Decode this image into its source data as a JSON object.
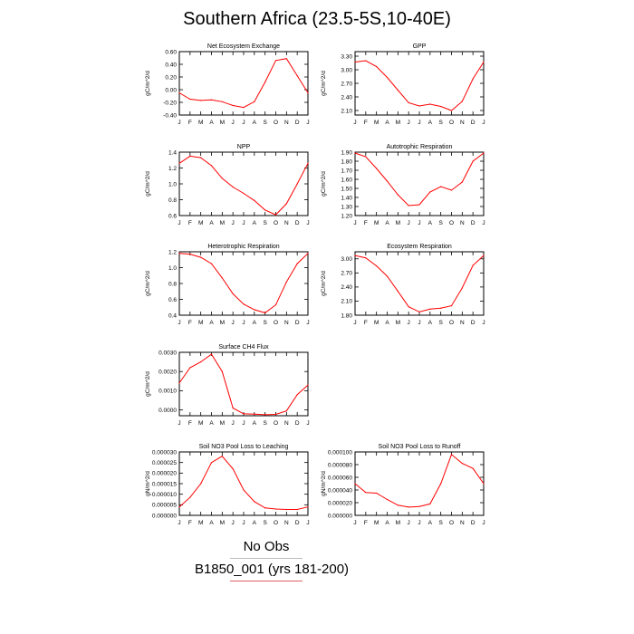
{
  "page_title": "Southern Africa (23.5-5S,10-40E)",
  "legend": {
    "obs_label": "No Obs",
    "case_label": "B1850_001 (yrs 181-200)",
    "case_color": "#ff0000",
    "obs_line_color": "#bbbbbb"
  },
  "chart_data": [
    {
      "type": "line",
      "title": "Net Ecosystem Exchange",
      "ylabel": "gC/m^2/d",
      "x": [
        "J",
        "F",
        "M",
        "A",
        "M",
        "J",
        "J",
        "A",
        "S",
        "O",
        "N",
        "D",
        "J"
      ],
      "ylim": [
        -0.4,
        0.6
      ],
      "yticks": [
        "-0.40",
        "-0.20",
        "0.00",
        "0.20",
        "0.40",
        "0.60"
      ],
      "yticks_values": [
        -0.4,
        -0.2,
        0.0,
        0.2,
        0.4,
        0.6
      ],
      "series": [
        {
          "values": [
            -0.05,
            -0.15,
            -0.17,
            -0.16,
            -0.19,
            -0.25,
            -0.28,
            -0.19,
            0.12,
            0.46,
            0.49,
            0.22,
            -0.05
          ]
        }
      ]
    },
    {
      "type": "line",
      "title": "GPP",
      "ylabel": "gC/m^2/d",
      "x": [
        "J",
        "F",
        "M",
        "A",
        "M",
        "J",
        "J",
        "A",
        "S",
        "O",
        "N",
        "D",
        "J"
      ],
      "ylim": [
        2.0,
        3.4
      ],
      "yticks": [
        "2.10",
        "2.40",
        "2.70",
        "3.00",
        "3.30"
      ],
      "yticks_values": [
        2.1,
        2.4,
        2.7,
        3.0,
        3.3
      ],
      "series": [
        {
          "values": [
            3.17,
            3.2,
            3.07,
            2.83,
            2.55,
            2.27,
            2.2,
            2.24,
            2.19,
            2.1,
            2.3,
            2.8,
            3.17
          ]
        }
      ]
    },
    {
      "type": "line",
      "title": "NPP",
      "ylabel": "gC/m^2/d",
      "x": [
        "J",
        "F",
        "M",
        "A",
        "M",
        "J",
        "J",
        "A",
        "S",
        "O",
        "N",
        "D",
        "J"
      ],
      "ylim": [
        0.6,
        1.4
      ],
      "yticks": [
        "0.6",
        "0.8",
        "1.0",
        "1.2",
        "1.4"
      ],
      "yticks_values": [
        0.6,
        0.8,
        1.0,
        1.2,
        1.4
      ],
      "series": [
        {
          "values": [
            1.26,
            1.35,
            1.33,
            1.23,
            1.07,
            0.96,
            0.88,
            0.79,
            0.67,
            0.61,
            0.75,
            1.0,
            1.26
          ]
        }
      ]
    },
    {
      "type": "line",
      "title": "Autotrophic Respiration",
      "ylabel": "gC/m^2/d",
      "x": [
        "J",
        "F",
        "M",
        "A",
        "M",
        "J",
        "J",
        "A",
        "S",
        "O",
        "N",
        "D",
        "J"
      ],
      "ylim": [
        1.2,
        1.9
      ],
      "yticks": [
        "1.20",
        "1.30",
        "1.40",
        "1.50",
        "1.60",
        "1.70",
        "1.80",
        "1.90"
      ],
      "yticks_values": [
        1.2,
        1.3,
        1.4,
        1.5,
        1.6,
        1.7,
        1.8,
        1.9
      ],
      "series": [
        {
          "values": [
            1.89,
            1.85,
            1.72,
            1.58,
            1.43,
            1.31,
            1.32,
            1.46,
            1.52,
            1.48,
            1.57,
            1.8,
            1.89
          ]
        }
      ]
    },
    {
      "type": "line",
      "title": "Heterotrophic Respiration",
      "ylabel": "gC/m^2/d",
      "x": [
        "J",
        "F",
        "M",
        "A",
        "M",
        "J",
        "J",
        "A",
        "S",
        "O",
        "N",
        "D",
        "J"
      ],
      "ylim": [
        0.4,
        1.2
      ],
      "yticks": [
        "0.4",
        "0.6",
        "0.8",
        "1.0",
        "1.2"
      ],
      "yticks_values": [
        0.4,
        0.6,
        0.8,
        1.0,
        1.2
      ],
      "series": [
        {
          "values": [
            1.18,
            1.17,
            1.13,
            1.05,
            0.87,
            0.67,
            0.54,
            0.47,
            0.43,
            0.53,
            0.82,
            1.05,
            1.18
          ]
        }
      ]
    },
    {
      "type": "line",
      "title": "Ecosystem Respiration",
      "ylabel": "gC/m^2/d",
      "x": [
        "J",
        "F",
        "M",
        "A",
        "M",
        "J",
        "J",
        "A",
        "S",
        "O",
        "N",
        "D",
        "J"
      ],
      "ylim": [
        1.8,
        3.15
      ],
      "yticks": [
        "1.80",
        "2.10",
        "2.40",
        "2.70",
        "3.00"
      ],
      "yticks_values": [
        1.8,
        2.1,
        2.4,
        2.7,
        3.0
      ],
      "series": [
        {
          "values": [
            3.07,
            3.02,
            2.85,
            2.63,
            2.31,
            1.98,
            1.87,
            1.93,
            1.95,
            2.0,
            2.38,
            2.86,
            3.07
          ]
        }
      ]
    },
    {
      "type": "line",
      "title": "Surface CH4 Flux",
      "ylabel": "gC/m^2/d",
      "x": [
        "J",
        "F",
        "M",
        "A",
        "M",
        "J",
        "J",
        "A",
        "S",
        "O",
        "N",
        "D",
        "J"
      ],
      "ylim": [
        -0.0003,
        0.003
      ],
      "yticks": [
        "0.0000",
        "0.0010",
        "0.0020",
        "0.0030"
      ],
      "yticks_values": [
        0.0,
        0.001,
        0.002,
        0.003
      ],
      "series": [
        {
          "values": [
            0.0014,
            0.0022,
            0.0025,
            0.0029,
            0.002,
            0.0001,
            -0.0002,
            -0.00022,
            -0.00025,
            -0.00023,
            -5e-05,
            0.0008,
            0.0013
          ]
        }
      ]
    },
    {
      "type": "line",
      "title": "Soil NO3 Pool Loss to Leaching",
      "ylabel": "gN/m^2/d",
      "x": [
        "J",
        "F",
        "M",
        "A",
        "M",
        "J",
        "J",
        "A",
        "S",
        "O",
        "N",
        "D",
        "J"
      ],
      "ylim": [
        0,
        3e-05
      ],
      "yticks": [
        "0.000000",
        "0.000005",
        "0.000010",
        "0.000015",
        "0.000020",
        "0.000025",
        "0.000030"
      ],
      "yticks_values": [
        0,
        5e-06,
        1e-05,
        1.5e-05,
        2e-05,
        2.5e-05,
        3e-05
      ],
      "series": [
        {
          "values": [
            4e-06,
            8.5e-06,
            1.5e-05,
            2.5e-05,
            2.8e-05,
            2.2e-05,
            1.2e-05,
            6.5e-06,
            3.5e-06,
            3e-06,
            2.8e-06,
            2.8e-06,
            4e-06
          ]
        }
      ]
    },
    {
      "type": "line",
      "title": "Soil NO3 Pool Loss to Runoff",
      "ylabel": "gN/m^2/d",
      "x": [
        "J",
        "F",
        "M",
        "A",
        "M",
        "J",
        "J",
        "A",
        "S",
        "O",
        "N",
        "D",
        "J"
      ],
      "ylim": [
        0,
        0.0001
      ],
      "yticks": [
        "0.000000",
        "0.000020",
        "0.000040",
        "0.000060",
        "0.000080",
        "0.000100"
      ],
      "yticks_values": [
        0,
        2e-05,
        4e-05,
        6e-05,
        8e-05,
        0.0001
      ],
      "series": [
        {
          "values": [
            5e-05,
            3.6e-05,
            3.5e-05,
            2.5e-05,
            1.6e-05,
            1.3e-05,
            1.4e-05,
            1.8e-05,
            5e-05,
            9.6e-05,
            8.2e-05,
            7.4e-05,
            5e-05
          ]
        }
      ]
    }
  ]
}
